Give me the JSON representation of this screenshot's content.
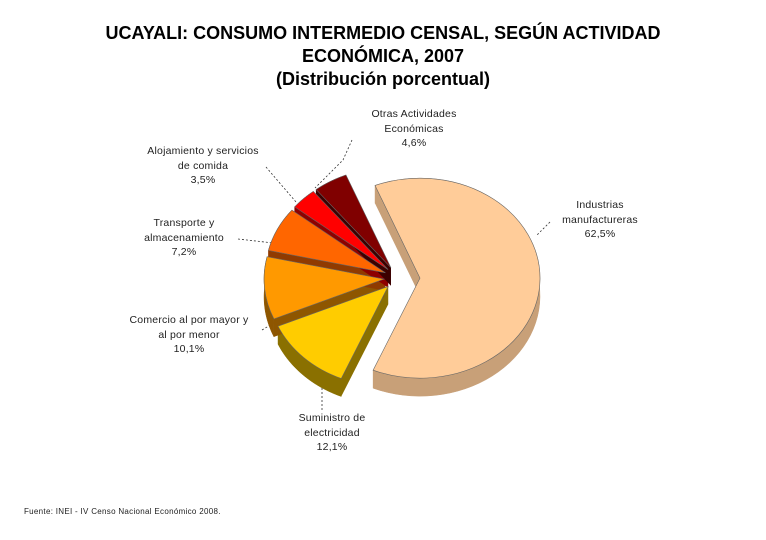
{
  "title": {
    "line1": "UCAYALI: CONSUMO INTERMEDIO CENSAL, SEGÚN ACTIVIDAD",
    "line2": "ECONÓMICA, 2007",
    "line3": "(Distribución porcentual)"
  },
  "source": "Fuente: INEI - IV Censo Nacional Económico 2008.",
  "chart_data": {
    "type": "pie",
    "exploded": true,
    "three_d": true,
    "unit": "%",
    "slices": [
      {
        "label": "Industrias manufactureras",
        "value": 62.5,
        "value_text": "62,5%",
        "color": "#FFCC99",
        "side": "#C8A078"
      },
      {
        "label": "Suministro de electricidad",
        "value": 12.1,
        "value_text": "12,1%",
        "color": "#FFCC00",
        "side": "#8A7000"
      },
      {
        "label": "Comercio al por mayor y al por menor",
        "value": 10.1,
        "value_text": "10,1%",
        "color": "#FF9900",
        "side": "#8E5600"
      },
      {
        "label": "Transporte y almacenamiento",
        "value": 7.2,
        "value_text": "7,2%",
        "color": "#FF6600",
        "side": "#903A00"
      },
      {
        "label": "Alojamiento y servicios de comida",
        "value": 3.5,
        "value_text": "3,5%",
        "color": "#FF0000",
        "side": "#8E0000"
      },
      {
        "label": "Otras Actividades Económicas",
        "value": 4.6,
        "value_text": "4,6%",
        "color": "#800000",
        "side": "#3C0000"
      }
    ]
  },
  "labels": {
    "manufactureras": {
      "l1": "Industrias",
      "l2": "manufactureras",
      "v": "62,5%"
    },
    "electricidad": {
      "l1": "Suministro de",
      "l2": "electricidad",
      "v": "12,1%"
    },
    "comercio": {
      "l1": "Comercio al por mayor y",
      "l2": "al por menor",
      "v": "10,1%"
    },
    "transporte": {
      "l1": "Transporte y",
      "l2": "almacenamiento",
      "v": "7,2%"
    },
    "alojamiento": {
      "l1": "Alojamiento y servicios",
      "l2": "de comida",
      "v": "3,5%"
    },
    "otras": {
      "l1": "Otras Actividades",
      "l2": "Económicas",
      "v": "4,6%"
    }
  }
}
